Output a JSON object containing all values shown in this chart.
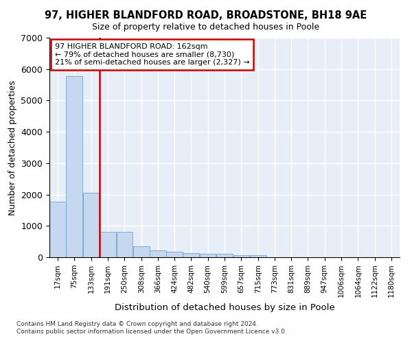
{
  "title1": "97, HIGHER BLANDFORD ROAD, BROADSTONE, BH18 9AE",
  "title2": "Size of property relative to detached houses in Poole",
  "xlabel": "Distribution of detached houses by size in Poole",
  "ylabel": "Number of detached properties",
  "footnote1": "Contains HM Land Registry data © Crown copyright and database right 2024.",
  "footnote2": "Contains public sector information licensed under the Open Government Licence v3.0.",
  "annotation_line1": "97 HIGHER BLANDFORD ROAD: 162sqm",
  "annotation_line2": "← 79% of detached houses are smaller (8,730)",
  "annotation_line3": "21% of semi-detached houses are larger (2,327) →",
  "bar_color": "#c5d8f0",
  "bar_edge_color": "#6ea4cc",
  "vline_color": "#cc0000",
  "vline_x_bin_index": 2,
  "categories": [
    17,
    75,
    133,
    191,
    250,
    308,
    366,
    424,
    482,
    540,
    599,
    657,
    715,
    773,
    831,
    889,
    947,
    1006,
    1064,
    1122,
    1180
  ],
  "bin_width": 58,
  "values": [
    1780,
    5780,
    2060,
    800,
    800,
    360,
    220,
    170,
    130,
    110,
    100,
    70,
    60,
    0,
    0,
    0,
    0,
    0,
    0,
    0,
    0
  ],
  "ylim": [
    0,
    7000
  ],
  "yticks": [
    0,
    1000,
    2000,
    3000,
    4000,
    5000,
    6000,
    7000
  ],
  "background_color": "#e8eef8",
  "fig_background_color": "#ffffff",
  "grid_color": "#ffffff",
  "annotation_box_color": "#ffffff",
  "annotation_border_color": "#cc0000"
}
